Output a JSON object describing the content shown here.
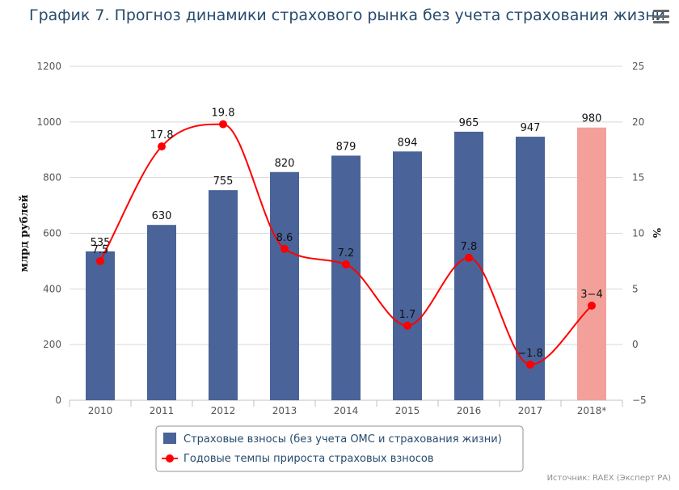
{
  "title": "График 7. Прогноз динамики страхового рынка без учета страхования жизни",
  "menu_icon": "hamburger-menu-icon",
  "credit": "Источник: RAEX (Эксперт РА)",
  "chart_data": {
    "type": "bar+line",
    "categories": [
      "2010",
      "2011",
      "2012",
      "2013",
      "2014",
      "2015",
      "2016",
      "2017",
      "2018*"
    ],
    "y_left": {
      "label": "млрд рублей",
      "range": [
        0,
        1200
      ],
      "ticks": [
        "0",
        "200",
        "400",
        "600",
        "800",
        "1000",
        "1200"
      ]
    },
    "y_right": {
      "label": "%",
      "range": [
        -5,
        25
      ],
      "ticks": [
        "−5",
        "0",
        "5",
        "10",
        "15",
        "20",
        "25"
      ]
    },
    "series": [
      {
        "name": "Страховые взносы (без учета ОМС и страхования жизни)",
        "type": "bar",
        "axis": "left",
        "color": "#4a6398",
        "forecast_color": "#f4a09a",
        "values": [
          535,
          630,
          755,
          820,
          879,
          894,
          965,
          947,
          980
        ],
        "labels": [
          "535",
          "630",
          "755",
          "820",
          "879",
          "894",
          "965",
          "947",
          "980"
        ]
      },
      {
        "name": "Годовые темпы прироста страховых взносов",
        "type": "line",
        "axis": "right",
        "color": "#ff0000",
        "values": [
          7.5,
          17.8,
          19.8,
          8.6,
          7.2,
          1.7,
          7.8,
          -1.8,
          3.5
        ],
        "labels": [
          "7.5",
          "17.8",
          "19.8",
          "8.6",
          "7.2",
          "1.7",
          "7.8",
          "−1.8",
          "3−4"
        ]
      }
    ],
    "grid": "horizontal",
    "legend_position": "bottom-center"
  }
}
